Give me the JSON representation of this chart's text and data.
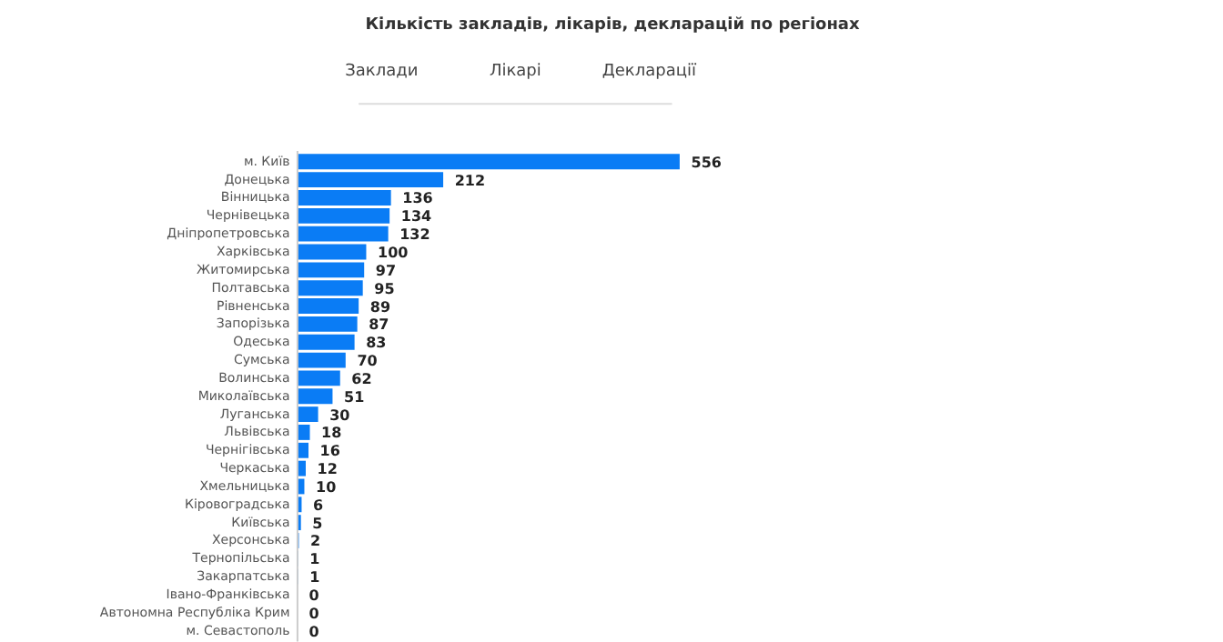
{
  "chart_data": {
    "type": "bar",
    "orientation": "horizontal",
    "title": "Кількість закладів, лікарів, декларацій по регіонах",
    "annotations": [
      "Заклади",
      "Лікарі",
      "Декларації"
    ],
    "categories": [
      "м. Київ",
      "Донецька",
      "Вінницька",
      "Чернівецька",
      "Дніпропетровська",
      "Харківська",
      "Житомирська",
      "Полтавська",
      "Рівненська",
      "Запорізька",
      "Одеська",
      "Сумська",
      "Волинська",
      "Миколаївська",
      "Луганська",
      "Львівська",
      "Чернігівська",
      "Черкаська",
      "Хмельницька",
      "Кіровоградська",
      "Київська",
      "Херсонська",
      "Тернопільська",
      "Закарпатська",
      "Івано-Франківська",
      "Автономна Республіка Крим",
      "м. Севастополь"
    ],
    "values": [
      556,
      212,
      136,
      134,
      132,
      100,
      97,
      95,
      89,
      87,
      83,
      70,
      62,
      51,
      30,
      18,
      16,
      12,
      10,
      6,
      5,
      2,
      1,
      1,
      0,
      0,
      0
    ],
    "color": "#0a7cf5",
    "data_labels": true
  }
}
